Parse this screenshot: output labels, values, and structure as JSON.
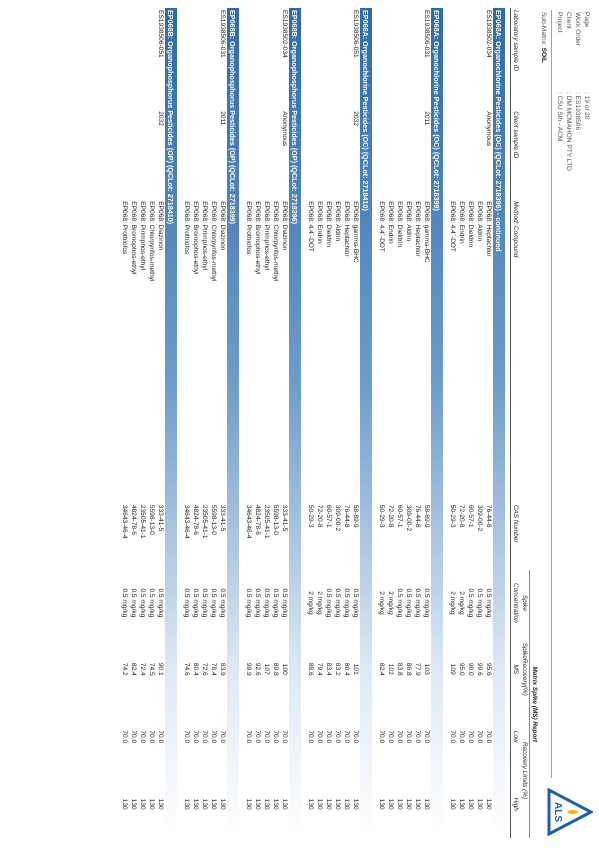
{
  "header": {
    "fields": [
      {
        "label": "Page",
        "value": ": 19 of 20"
      },
      {
        "label": "Work Order",
        "value": ": ES1938506"
      },
      {
        "label": "Client",
        "value": ": DM MCMAHON PTY LTD"
      },
      {
        "label": "Project",
        "value": ": CSU Sth - ACM"
      }
    ],
    "sub_matrix_label": "Sub-Matrix:",
    "sub_matrix": "SOIL",
    "logo": "ALS"
  },
  "table": {
    "report_title": "Matrix Spike (MS) Report",
    "spike_header": "Spike",
    "recovery_header": "SpikeRecovery(%)",
    "limits_header": "Recovery Limits (%)",
    "columns": [
      "Laboratory sample ID",
      "Client sample ID",
      "Method: Compound",
      "CAS Number",
      "Concentration",
      "MS",
      "Low",
      "High"
    ],
    "sections": [
      {
        "title": "EP068A: Organochlorine Pesticides (OC) (QCLot: 2718396) - continued",
        "lab_id": "ES1938502-034",
        "client_id": "Anonymous",
        "rows": [
          [
            "EP068: Heptachlor",
            "76-44-8",
            "0.5 mg/kg",
            "95.6",
            "70.0",
            "130"
          ],
          [
            "EP068: Aldrin",
            "309-00-2",
            "0.5 mg/kg",
            "99.6",
            "70.0",
            "130"
          ],
          [
            "EP068: Dieldrin",
            "60-57-1",
            "0.5 mg/kg",
            "90.0",
            "70.0",
            "130"
          ],
          [
            "EP068: Endrin",
            "72-20-8",
            "2 mg/kg",
            "95.0",
            "70.0",
            "130"
          ],
          [
            "EP068: 4.4`-DDT",
            "50-29-3",
            "2 mg/kg",
            "109",
            "70.0",
            "130"
          ]
        ]
      },
      {
        "title": "EP068A: Organochlorine Pesticides (OC) (QCLot: 2718399)",
        "lab_id": "ES1938506-031",
        "client_id": "2011",
        "rows": [
          [
            "EP068: gamma-BHC",
            "58-89-9",
            "0.5 mg/kg",
            "103",
            "70.0",
            "130"
          ],
          [
            "EP068: Heptachlor",
            "76-44-8",
            "0.5 mg/kg",
            "77.9",
            "70.0",
            "130"
          ],
          [
            "EP068: Aldrin",
            "309-00-2",
            "0.5 mg/kg",
            "86.8",
            "70.0",
            "130"
          ],
          [
            "EP068: Dieldrin",
            "60-57-1",
            "0.5 mg/kg",
            "83.8",
            "70.0",
            "130"
          ],
          [
            "EP068: Endrin",
            "72-20-8",
            "2 mg/kg",
            "102",
            "70.0",
            "130"
          ],
          [
            "EP068: 4.4`-DDT",
            "50-29-3",
            "2 mg/kg",
            "82.4",
            "70.0",
            "130"
          ]
        ]
      },
      {
        "title": "EP068A: Organochlorine Pesticides (OC) (QCLot: 2718410)",
        "lab_id": "ES1938506-051",
        "client_id": "2032",
        "rows": [
          [
            "EP068: gamma-BHC",
            "58-89-9",
            "0.5 mg/kg",
            "101",
            "70.0",
            "130"
          ],
          [
            "EP068: Heptachlor",
            "76-44-8",
            "0.5 mg/kg",
            "80.4",
            "70.0",
            "130"
          ],
          [
            "EP068: Aldrin",
            "309-00-2",
            "0.5 mg/kg",
            "83.2",
            "70.0",
            "130"
          ],
          [
            "EP068: Dieldrin",
            "60-57-1",
            "0.5 mg/kg",
            "83.4",
            "70.0",
            "130"
          ],
          [
            "EP068: Endrin",
            "72-20-8",
            "2 mg/kg",
            "79.4",
            "70.0",
            "130"
          ],
          [
            "EP068: 4.4`-DDT",
            "50-29-3",
            "2 mg/kg",
            "88.6",
            "70.0",
            "130"
          ]
        ]
      },
      {
        "title": "EP068B: Organophosphorus Pesticides (OP) (QCLot: 2718396)",
        "lab_id": "ES1938502-034",
        "client_id": "Anonymous",
        "rows": [
          [
            "EP068: Diazinon",
            "333-41-5",
            "0.5 mg/kg",
            "100",
            "70.0",
            "130"
          ],
          [
            "EP068: Chlorpyrifos-methyl",
            "5598-13-0",
            "0.5 mg/kg",
            "89.8",
            "70.0",
            "130"
          ],
          [
            "EP068: Pirimphos-ethyl",
            "23505-41-1",
            "0.5 mg/kg",
            "107",
            "70.0",
            "130"
          ],
          [
            "EP068: Bromophos-ethyl",
            "4824-78-6",
            "0.5 mg/kg",
            "92.6",
            "70.0",
            "130"
          ],
          [
            "EP068: Prothiofos",
            "34643-46-4",
            "0.5 mg/kg",
            "99.9",
            "70.0",
            "130"
          ]
        ]
      },
      {
        "title": "EP068B: Organophosphorus Pesticides (OP) (QCLot: 2718399)",
        "lab_id": "ES1938506-031",
        "client_id": "2011",
        "rows": [
          [
            "EP068: Diazinon",
            "333-41-5",
            "0.5 mg/kg",
            "83.9",
            "70.0",
            "130"
          ],
          [
            "EP068: Chlorpyrifos-methyl",
            "5598-13-0",
            "0.5 mg/kg",
            "78.4",
            "70.0",
            "130"
          ],
          [
            "EP068: Pirimphos-ethyl",
            "23505-41-1",
            "0.5 mg/kg",
            "72.6",
            "70.0",
            "130"
          ],
          [
            "EP068: Bromophos-ethyl",
            "4824-78-6",
            "0.5 mg/kg",
            "80.4",
            "70.0",
            "130"
          ],
          [
            "EP068: Prothiofos",
            "34643-46-4",
            "0.5 mg/kg",
            "74.6",
            "70.0",
            "130"
          ]
        ]
      },
      {
        "title": "EP068B: Organophosphorus Pesticides (OP) (QCLot: 2718410)",
        "lab_id": "ES1938506-051",
        "client_id": "2032",
        "rows": [
          [
            "EP068: Diazinon",
            "333-41-5",
            "0.5 mg/kg",
            "90.1",
            "70.0",
            "130"
          ],
          [
            "EP068: Chlorpyrifos-methyl",
            "5598-13-0",
            "0.5 mg/kg",
            "74.5",
            "70.0",
            "130"
          ],
          [
            "EP068: Pirimphos-ethyl",
            "23505-41-1",
            "0.5 mg/kg",
            "72.4",
            "70.0",
            "130"
          ],
          [
            "EP068: Bromophos-ethyl",
            "4824-78-6",
            "0.5 mg/kg",
            "82.4",
            "70.0",
            "130"
          ],
          [
            "EP068: Prothiofos",
            "34643-46-4",
            "0.5 mg/kg",
            "74.2",
            "70.0",
            "130"
          ]
        ]
      }
    ]
  }
}
